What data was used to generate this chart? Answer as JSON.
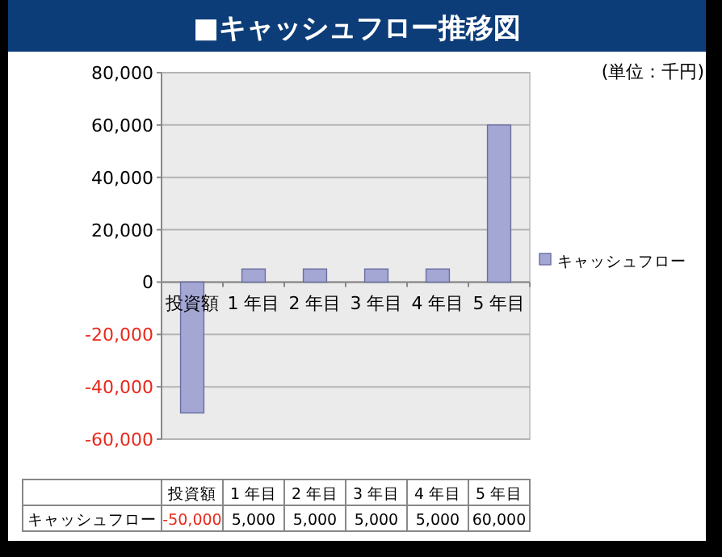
{
  "chart_data": {
    "type": "bar",
    "title": "■キャッシュフロー推移図",
    "annotations": [
      "(単位：千円)"
    ],
    "categories": [
      "投資額",
      "1 年目",
      "2 年目",
      "3 年目",
      "4 年目",
      "5 年目"
    ],
    "series": [
      {
        "name": "キャッシュフロー",
        "color": "#a4a6d4",
        "values": [
          -50000,
          5000,
          5000,
          5000,
          5000,
          60000
        ],
        "value_labels": [
          "-50,000",
          "5,000",
          "5,000",
          "5,000",
          "5,000",
          "60,000"
        ]
      }
    ],
    "ylim": [
      -60000,
      80000
    ],
    "yticks": [
      {
        "value": -60000,
        "label": "-60,000"
      },
      {
        "value": -40000,
        "label": "-40,000"
      },
      {
        "value": -20000,
        "label": "-20,000"
      },
      {
        "value": 0,
        "label": "0"
      },
      {
        "value": 20000,
        "label": "20,000"
      },
      {
        "value": 40000,
        "label": "40,000"
      },
      {
        "value": 60000,
        "label": "60,000"
      },
      {
        "value": 80000,
        "label": "80,000"
      }
    ],
    "grid": "y",
    "legend": "right"
  }
}
